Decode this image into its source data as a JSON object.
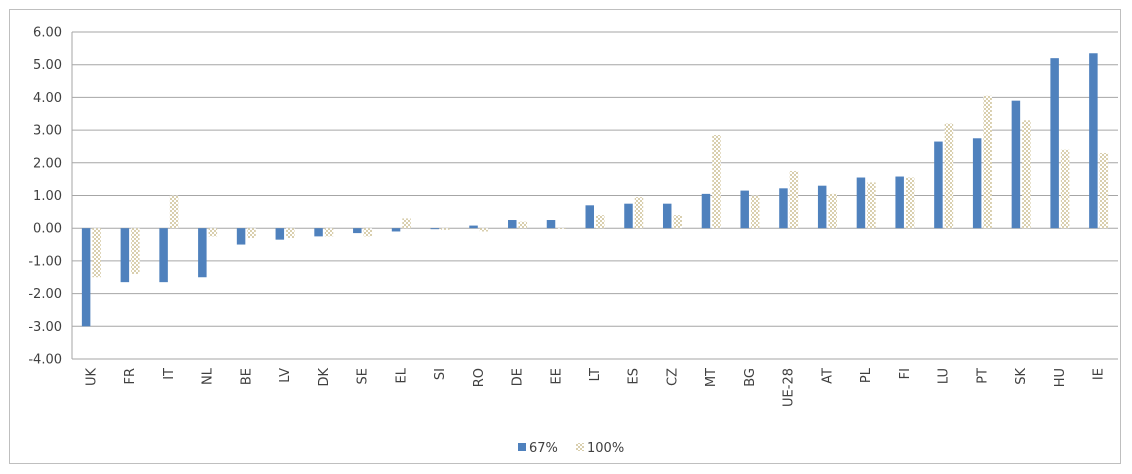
{
  "chart_data": {
    "type": "bar",
    "title": "",
    "xlabel": "",
    "ylabel": "",
    "ylim": [
      -4,
      6
    ],
    "yticks": [
      "6.00",
      "5.00",
      "4.00",
      "3.00",
      "2.00",
      "1.00",
      "0.00",
      "-1.00",
      "-2.00",
      "-3.00",
      "-4.00"
    ],
    "grid": true,
    "legend_position": "bottom",
    "categories": [
      "UK",
      "FR",
      "IT",
      "NL",
      "BE",
      "LV",
      "DK",
      "SE",
      "EL",
      "SI",
      "RO",
      "DE",
      "EE",
      "LT",
      "ES",
      "CZ",
      "MT",
      "BG",
      "UE-28",
      "AT",
      "PL",
      "FI",
      "LU",
      "PT",
      "SK",
      "HU",
      "IE"
    ],
    "series": [
      {
        "name": "67%",
        "color": "#4f81bd",
        "pattern": "solid",
        "values": [
          -3.0,
          -1.65,
          -1.65,
          -1.5,
          -0.5,
          -0.35,
          -0.25,
          -0.15,
          -0.1,
          -0.03,
          0.08,
          0.25,
          0.25,
          0.7,
          0.75,
          0.75,
          1.05,
          1.15,
          1.22,
          1.3,
          1.55,
          1.58,
          2.65,
          2.75,
          3.9,
          5.2,
          5.35
        ]
      },
      {
        "name": "100%",
        "color": "#d9cfae",
        "pattern": "checker",
        "values": [
          -1.5,
          -1.4,
          1.0,
          -0.25,
          -0.3,
          -0.3,
          -0.25,
          -0.25,
          0.3,
          -0.05,
          -0.1,
          0.2,
          0.0,
          0.4,
          0.95,
          0.4,
          2.85,
          1.0,
          1.75,
          1.05,
          1.4,
          1.55,
          3.2,
          4.05,
          3.3,
          2.4,
          2.3
        ]
      }
    ]
  }
}
